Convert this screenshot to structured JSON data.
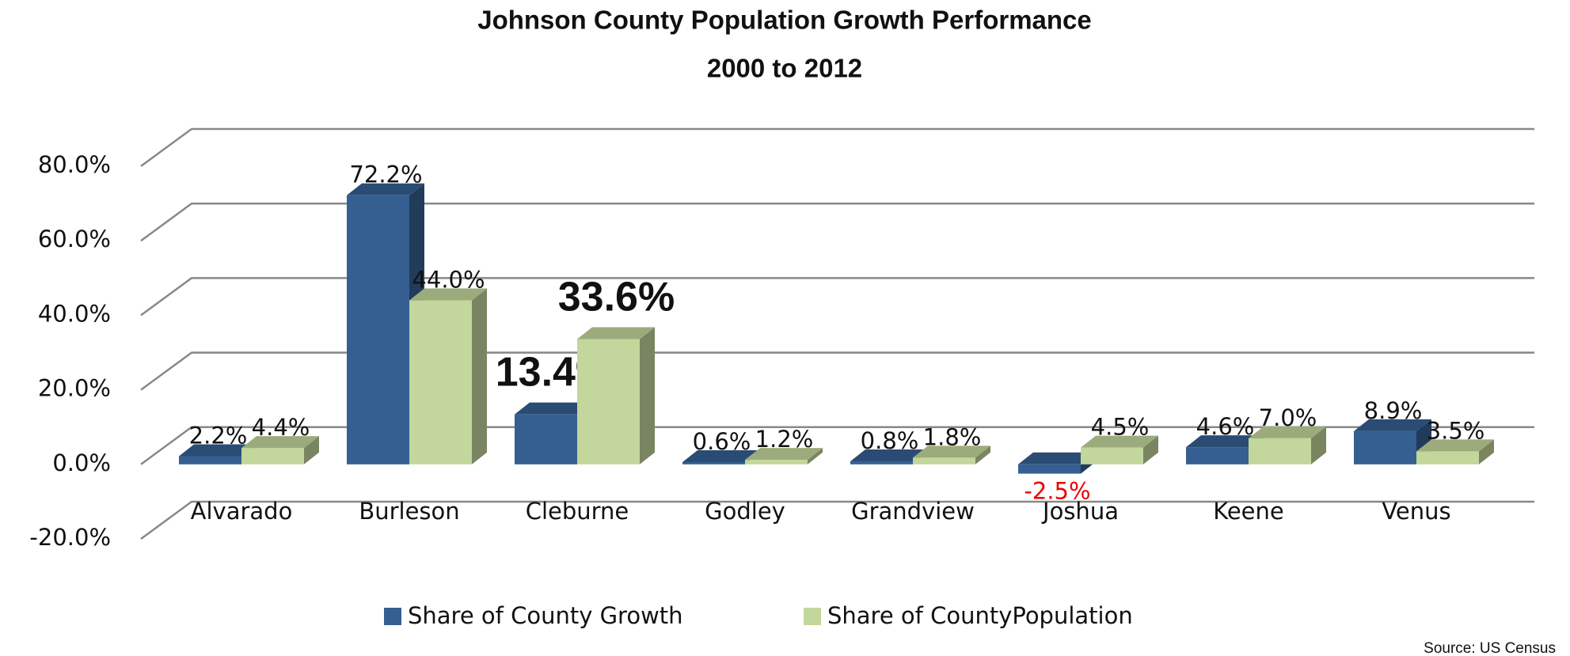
{
  "chart_data": {
    "type": "bar3d",
    "title": "Johnson County Population Growth Performance",
    "subtitle": "2000 to 2012",
    "categories": [
      "Alvarado",
      "Burleson",
      "Cleburne",
      "Godley",
      "Grandview",
      "Joshua",
      "Keene",
      "Venus"
    ],
    "series": [
      {
        "name": "Share of County Growth",
        "color": "#355f91",
        "values": [
          2.2,
          72.2,
          13.4,
          0.6,
          0.8,
          -2.5,
          4.6,
          8.9
        ],
        "value_labels": [
          "2.2%",
          "72.2%",
          "13.4%",
          "0.6%",
          "0.8%",
          "-2.5%",
          "4.6%",
          "8.9%"
        ]
      },
      {
        "name": "Share of CountyPopulation",
        "color": "#c3d69b",
        "values": [
          4.4,
          44.0,
          33.6,
          1.2,
          1.8,
          4.5,
          7.0,
          3.5
        ],
        "value_labels": [
          "4.4%",
          "44.0%",
          "33.6%",
          "1.2%",
          "1.8%",
          "4.5%",
          "7.0%",
          "3.5%"
        ]
      }
    ],
    "ylim": [
      -20,
      80
    ],
    "yticks": [
      {
        "value": -20,
        "label": "-20.0%"
      },
      {
        "value": 0,
        "label": "0.0%"
      },
      {
        "value": 20,
        "label": "20.0%"
      },
      {
        "value": 40,
        "label": "40.0%"
      },
      {
        "value": 60,
        "label": "60.0%"
      },
      {
        "value": 80,
        "label": "80.0%"
      }
    ],
    "grid": true,
    "legend": "bottom",
    "source": "Source: US Census"
  }
}
